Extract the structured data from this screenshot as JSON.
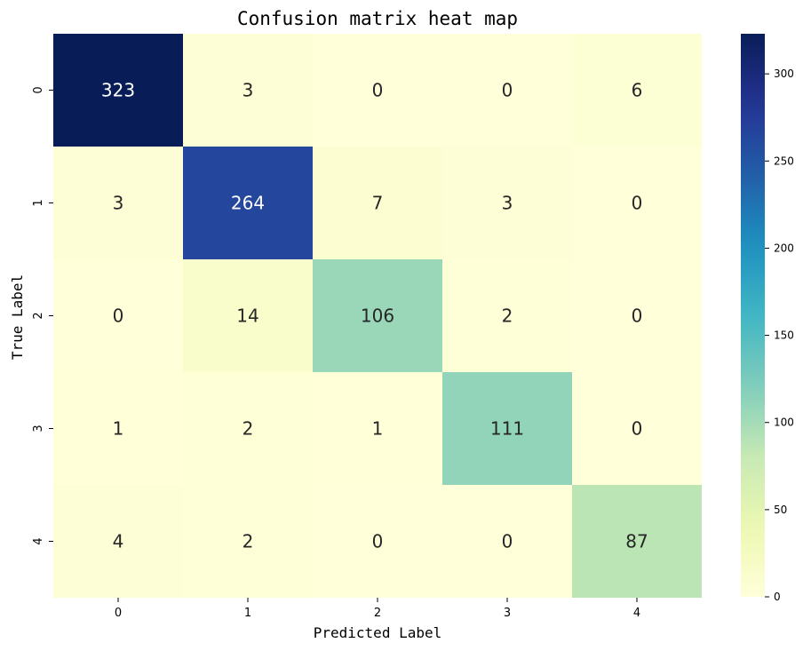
{
  "chart_data": {
    "type": "heatmap",
    "title": "Confusion matrix heat map",
    "xlabel": "Predicted Label",
    "ylabel": "True Label",
    "x_categories": [
      "0",
      "1",
      "2",
      "3",
      "4"
    ],
    "y_categories": [
      "0",
      "1",
      "2",
      "3",
      "4"
    ],
    "values": [
      [
        323,
        3,
        0,
        0,
        6
      ],
      [
        3,
        264,
        7,
        3,
        0
      ],
      [
        0,
        14,
        106,
        2,
        0
      ],
      [
        1,
        2,
        1,
        111,
        0
      ],
      [
        4,
        2,
        0,
        0,
        87
      ]
    ],
    "colormap": "YlGnBu",
    "vmin": 0,
    "vmax": 323,
    "colorbar_ticks": [
      0,
      50,
      100,
      150,
      200,
      250,
      300
    ],
    "colorbar_tick_labels": [
      "0",
      "50",
      "100",
      "150",
      "200",
      "250",
      "300"
    ],
    "grid": false
  }
}
